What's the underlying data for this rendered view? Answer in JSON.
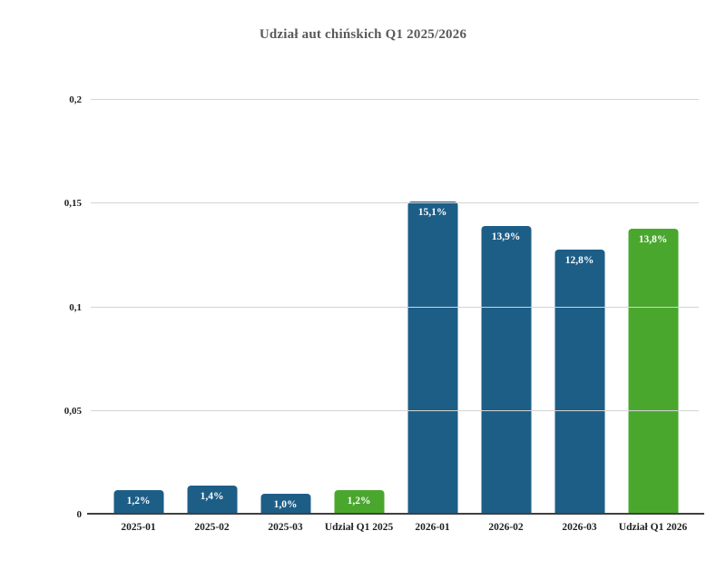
{
  "colors": {
    "bar_blue": "#1d5e87",
    "bar_green": "#4aa72e",
    "title_text": "#595959",
    "axis_text": "#1f1f1f",
    "bar_label_text": "#ffffff",
    "gridline": "#d4d4d4",
    "axis_line": "#404040",
    "background": "#ffffff"
  },
  "chart_data": {
    "type": "bar",
    "title": "Udział aut chińskich Q1 2025/2026",
    "xlabel": "",
    "ylabel": "",
    "categories": [
      "2025-01",
      "2025-02",
      "2025-03",
      "Udział Q1 2025",
      "2026-01",
      "2026-02",
      "2026-03",
      "Udział Q1 2026"
    ],
    "values": [
      0.012,
      0.014,
      0.01,
      0.012,
      0.151,
      0.139,
      0.128,
      0.138
    ],
    "value_labels": [
      "1,2%",
      "1,4%",
      "1,0%",
      "1,2%",
      "15,1%",
      "13,9%",
      "12,8%",
      "13,8%"
    ],
    "bar_colors": [
      "#1d5e87",
      "#1d5e87",
      "#1d5e87",
      "#4aa72e",
      "#1d5e87",
      "#1d5e87",
      "#1d5e87",
      "#4aa72e"
    ],
    "ylim": [
      0,
      0.2
    ],
    "yticks": [
      0,
      0.05,
      0.1,
      0.15,
      0.2
    ],
    "ytick_labels": [
      "0",
      "0,05",
      "0,1",
      "0,15",
      "0,2"
    ],
    "grid": true,
    "legend": false
  }
}
